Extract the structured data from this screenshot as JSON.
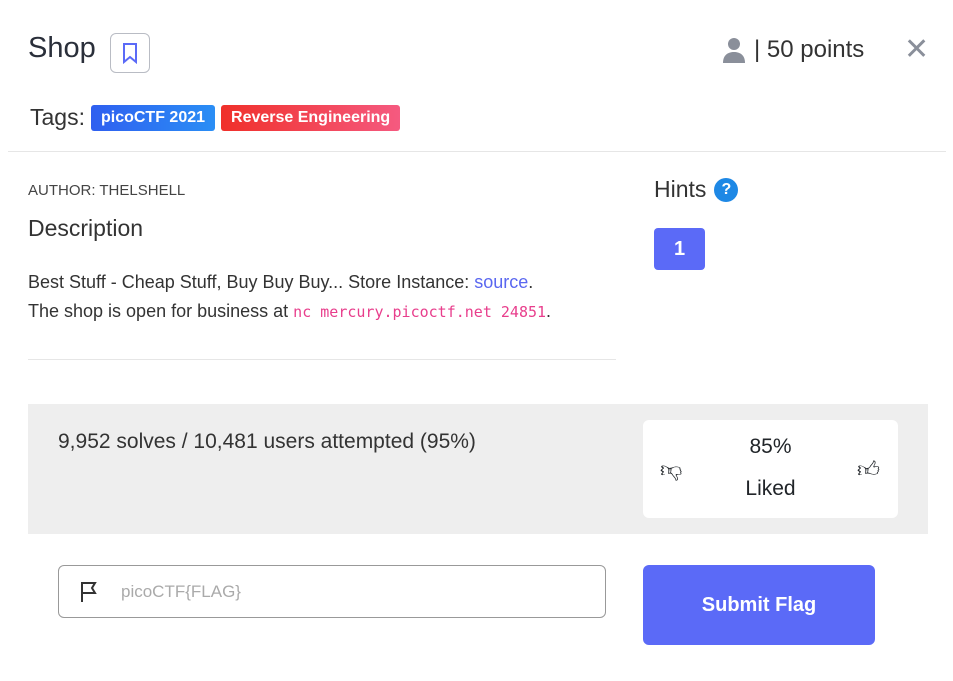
{
  "header": {
    "title": "Shop",
    "points": "| 50 points",
    "close": "✕"
  },
  "tags": {
    "label": "Tags:",
    "items": [
      {
        "label": "picoCTF 2021",
        "color": "#2f6ef2"
      },
      {
        "label": "Reverse Engineering",
        "color": "#f0353a"
      }
    ]
  },
  "author": "AUTHOR: THELSHELL",
  "description": {
    "heading": "Description",
    "line1": "Best Stuff - Cheap Stuff, Buy Buy Buy... Store Instance: ",
    "link": "source",
    "line1_end": ".",
    "line2": "The shop is open for business at ",
    "code": "nc mercury.picoctf.net 24851",
    "line2_end": "."
  },
  "hints": {
    "heading": "Hints",
    "icon": "?",
    "items": [
      "1"
    ]
  },
  "stats": {
    "solves": "9,952 solves / 10,481 users attempted (95%)",
    "liked_pct": "85%",
    "liked_label": "Liked"
  },
  "flag": {
    "placeholder": "picoCTF{FLAG}",
    "submit": "Submit Flag"
  },
  "colors": {
    "accent": "#5b6af7"
  }
}
